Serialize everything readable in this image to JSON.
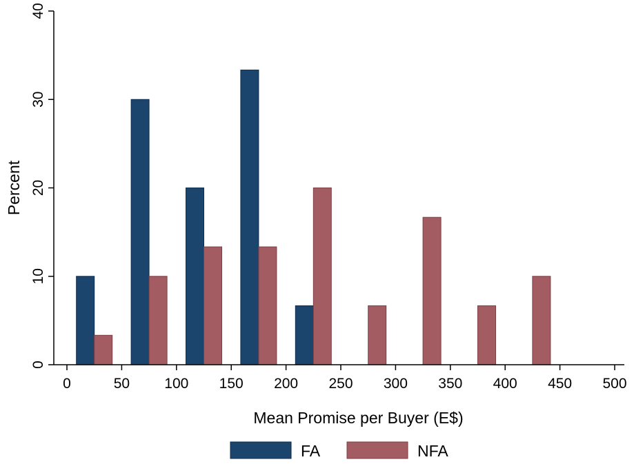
{
  "chart_data": {
    "type": "bar",
    "title": "",
    "xlabel": "Mean Promise per Buyer (E$)",
    "ylabel": "Percent",
    "xlim": [
      0,
      500
    ],
    "ylim": [
      0,
      40
    ],
    "x_ticks": [
      "0",
      "50",
      "100",
      "150",
      "200",
      "250",
      "300",
      "350",
      "400",
      "450",
      "500"
    ],
    "y_ticks": [
      "0",
      "10",
      "20",
      "30",
      "40"
    ],
    "bin_centers": [
      25,
      75,
      125,
      175,
      225,
      275,
      325,
      375,
      425
    ],
    "grid": false,
    "legend_position": "bottom",
    "series": [
      {
        "name": "FA",
        "color": "#1c456e",
        "values": [
          10,
          30,
          20,
          33.33,
          6.67,
          0,
          0,
          0,
          0
        ]
      },
      {
        "name": "NFA",
        "color": "#a45c63",
        "values": [
          3.33,
          10,
          13.33,
          13.33,
          20,
          6.67,
          16.67,
          6.67,
          10
        ]
      }
    ]
  }
}
